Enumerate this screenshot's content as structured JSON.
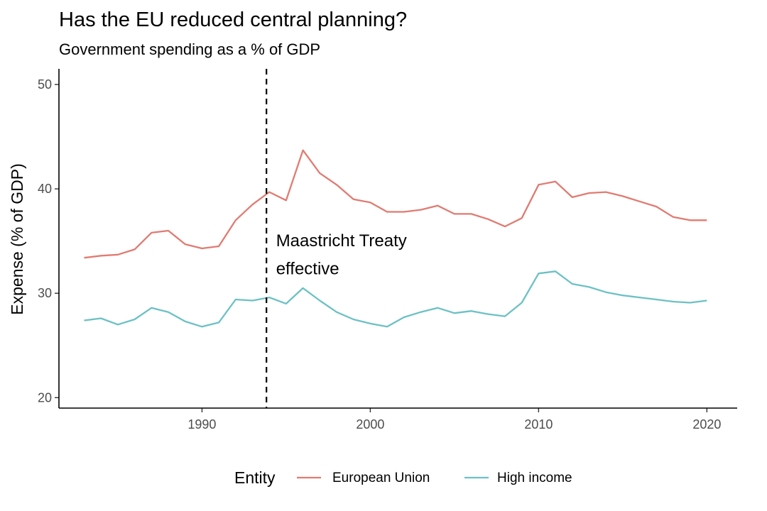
{
  "chart_data": {
    "type": "line",
    "title": "Has the EU reduced central planning?",
    "subtitle": "Government spending as a % of GDP",
    "ylabel": "Expense (% of GDP)",
    "xlabel": "",
    "xlim": [
      1981.5,
      2021.8
    ],
    "ylim": [
      19,
      51.5
    ],
    "xticks": [
      1990,
      2000,
      2010,
      2020
    ],
    "yticks": [
      20,
      30,
      40,
      50
    ],
    "grid": false,
    "legend": {
      "title": "Entity",
      "position": "bottom"
    },
    "x": [
      1983,
      1984,
      1985,
      1986,
      1987,
      1988,
      1989,
      1990,
      1991,
      1992,
      1993,
      1994,
      1995,
      1996,
      1997,
      1998,
      1999,
      2000,
      2001,
      2002,
      2003,
      2004,
      2005,
      2006,
      2007,
      2008,
      2009,
      2010,
      2011,
      2012,
      2013,
      2014,
      2015,
      2016,
      2017,
      2018,
      2019,
      2020
    ],
    "series": [
      {
        "name": "European Union",
        "color": "#e07b72",
        "values": [
          33.4,
          33.6,
          33.7,
          34.2,
          35.8,
          36.0,
          34.7,
          34.3,
          34.5,
          37.0,
          38.5,
          39.7,
          38.9,
          43.7,
          41.5,
          40.4,
          39.0,
          38.7,
          37.8,
          37.8,
          38.0,
          38.4,
          37.6,
          37.6,
          37.1,
          36.4,
          37.2,
          40.4,
          40.7,
          39.2,
          39.6,
          39.7,
          39.3,
          38.8,
          38.3,
          37.3,
          37.0,
          37.0
        ]
      },
      {
        "name": "High income",
        "color": "#6cc1c4",
        "values": [
          27.4,
          27.6,
          27.0,
          27.5,
          28.6,
          28.2,
          27.3,
          26.8,
          27.2,
          29.4,
          29.3,
          29.6,
          29.0,
          30.5,
          29.3,
          28.2,
          27.5,
          27.1,
          26.8,
          27.7,
          28.2,
          28.6,
          28.1,
          28.3,
          28.0,
          27.8,
          29.1,
          31.9,
          32.1,
          30.9,
          30.6,
          30.1,
          29.8,
          29.6,
          29.4,
          29.2,
          29.1,
          29.3
        ]
      }
    ],
    "annotations": [
      {
        "type": "vline",
        "x": 1993.83,
        "style": "dashed",
        "color": "#000000"
      },
      {
        "type": "text",
        "lines": [
          "Maastricht Treaty",
          "effective"
        ],
        "x": 1994.4,
        "y": [
          34.5,
          31.8
        ]
      }
    ]
  }
}
